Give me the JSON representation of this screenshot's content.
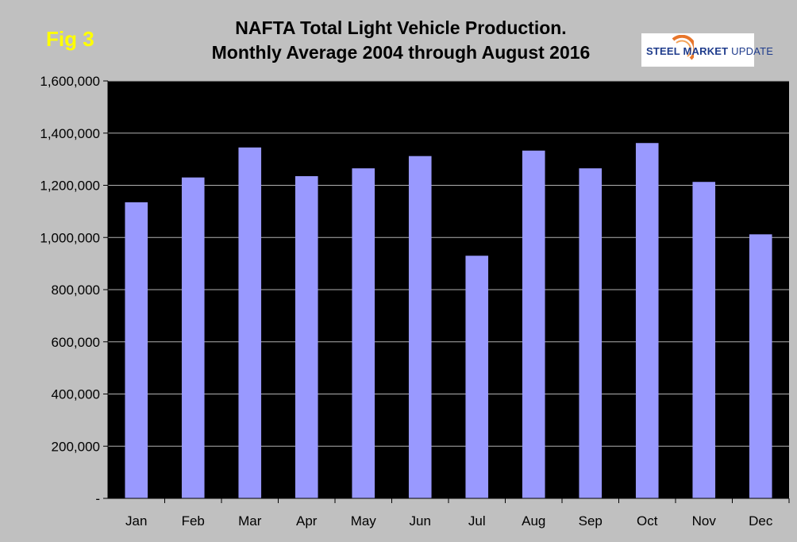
{
  "figure": {
    "fig_label": "Fig 3",
    "title_line1": "NAFTA Total Light Vehicle Production.",
    "title_line2": "Monthly Average 2004 through August 2016",
    "logo": {
      "steel": "STEEL",
      "market": "MARKET",
      "update": "UPDATE"
    }
  },
  "colors": {
    "background": "#c0c0c0",
    "plot_area": "#000000",
    "bar": "#9999ff",
    "grid": "#b0b0b0",
    "fig_label": "#ffff00"
  },
  "chart_data": {
    "type": "bar",
    "title": "NAFTA Total Light Vehicle Production. Monthly Average 2004 through August 2016",
    "xlabel": "",
    "ylabel": "",
    "categories": [
      "Jan",
      "Feb",
      "Mar",
      "Apr",
      "May",
      "Jun",
      "Jul",
      "Aug",
      "Sep",
      "Oct",
      "Nov",
      "Dec"
    ],
    "values": [
      1135000,
      1230000,
      1345000,
      1235000,
      1265000,
      1312000,
      930000,
      1333000,
      1265000,
      1362000,
      1213000,
      1012000
    ],
    "ylim": [
      0,
      1600000
    ],
    "yticks": [
      0,
      200000,
      400000,
      600000,
      800000,
      1000000,
      1200000,
      1400000,
      1600000
    ],
    "ytick_labels": [
      "-",
      "200,000",
      "400,000",
      "600,000",
      "800,000",
      "1,000,000",
      "1,200,000",
      "1,400,000",
      "1,600,000"
    ],
    "grid": true,
    "legend": "none"
  }
}
